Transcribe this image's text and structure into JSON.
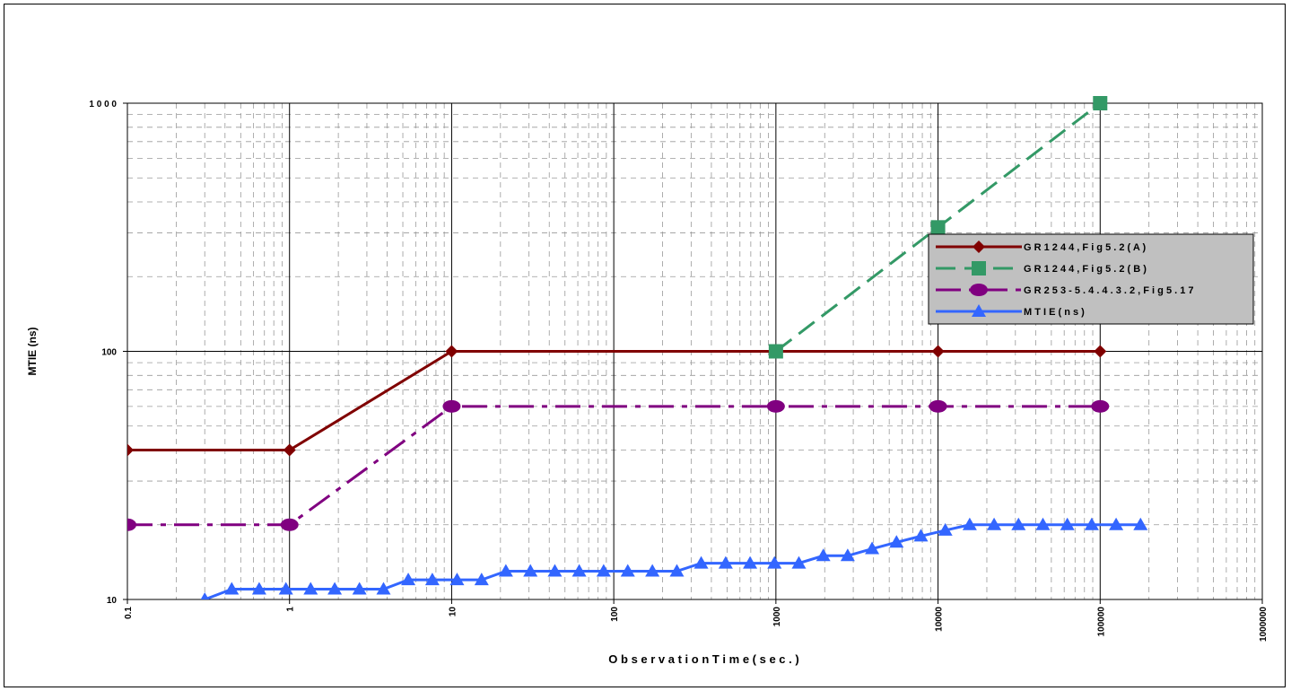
{
  "chart_data": {
    "type": "line",
    "xlabel": "O b s e r v a t i o n   T i m e   ( s e c . )",
    "ylabel": "MTIE (ns)",
    "x_scale": "log",
    "y_scale": "log",
    "xlim": [
      0.1,
      1000000
    ],
    "ylim": [
      10,
      1000
    ],
    "x_ticks": [
      "0.1",
      "1",
      "10",
      "100",
      "1000",
      "10000",
      "100000",
      "1000000"
    ],
    "y_ticks": [
      "10",
      "100",
      "1 0 0 0"
    ],
    "grid": true,
    "legend_position": "right",
    "series": [
      {
        "name": "G R 1 2 4 4 ,  F i g  5 . 2  ( A )",
        "color": "#800000",
        "marker": "diamond",
        "dash": "solid",
        "x": [
          0.1,
          1,
          10,
          1000,
          10000,
          100000
        ],
        "y": [
          40,
          40,
          100,
          100,
          100,
          100
        ]
      },
      {
        "name": "G R 1 2 4 4 ,  F i g  5 . 2  ( B )",
        "color": "#339966",
        "marker": "square",
        "dash": "dash",
        "x": [
          1000,
          10000,
          100000
        ],
        "y": [
          100,
          316,
          1000
        ]
      },
      {
        "name": "G R 2 5 3 - 5 . 4 . 4 . 3 . 2 ,  F i g  5 . 1 7",
        "color": "#800080",
        "marker": "circle",
        "dash": "dashdot",
        "x": [
          0.1,
          1,
          10,
          1000,
          10000,
          100000
        ],
        "y": [
          20,
          20,
          60,
          60,
          60,
          60
        ]
      },
      {
        "name": "M T I E  ( n s )",
        "color": "#3366FF",
        "marker": "triangle",
        "dash": "solid",
        "x": [
          0.2,
          0.3,
          0.44,
          0.65,
          0.95,
          1.35,
          1.9,
          2.7,
          3.8,
          5.4,
          7.6,
          10.8,
          15.3,
          21.6,
          30.6,
          43.3,
          61.2,
          86.6,
          122,
          173,
          245,
          346,
          490,
          693,
          980,
          1386,
          1960,
          2772,
          3920,
          5544,
          7840,
          11088,
          15680,
          22176,
          31360,
          44352,
          62720,
          88704,
          125440,
          177400
        ],
        "y": [
          9,
          10,
          11,
          11,
          11,
          11,
          11,
          11,
          11,
          12,
          12,
          12,
          12,
          13,
          13,
          13,
          13,
          13,
          13,
          13,
          13,
          14,
          14,
          14,
          14,
          14,
          15,
          15,
          16,
          17,
          18,
          19,
          20,
          20,
          20,
          20,
          20,
          20,
          20,
          20
        ]
      }
    ]
  }
}
